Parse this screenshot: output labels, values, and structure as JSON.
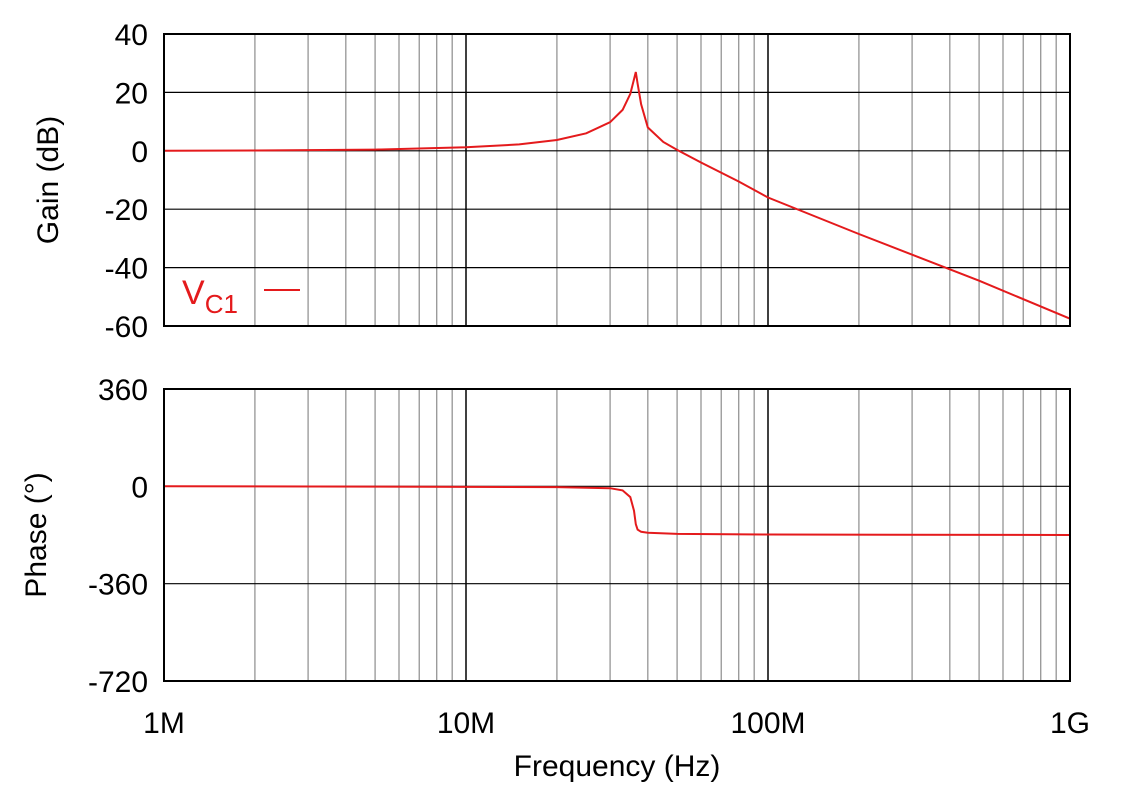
{
  "chart_data": [
    {
      "type": "line",
      "panel": "gain",
      "ylabel": "Gain (dB)",
      "ylim": [
        -60,
        40
      ],
      "yticks": [
        "40",
        "20",
        "0",
        "-20",
        "-40",
        "-60"
      ],
      "xscale": "log",
      "xlim": [
        1000000,
        1000000000
      ],
      "grid": true,
      "legend": {
        "text": "V",
        "subscript": "C1",
        "placement": "bottom-left"
      },
      "series": [
        {
          "name": "V_C1",
          "color": "#e41a1c",
          "x": [
            1000000,
            2000000,
            5000000,
            10000000,
            15000000,
            20000000,
            25000000,
            30000000,
            33000000,
            35000000,
            36000000,
            36500000,
            37000000,
            38000000,
            40000000,
            45000000,
            50000000,
            60000000,
            80000000,
            100000000,
            200000000,
            500000000,
            1000000000
          ],
          "y": [
            0,
            0.1,
            0.4,
            1.2,
            2.2,
            3.7,
            6.0,
            9.8,
            14.0,
            19.5,
            24.5,
            27.0,
            23.0,
            16.0,
            8.0,
            3.0,
            0.3,
            -4.0,
            -10.5,
            -16.0,
            -28.5,
            -44.5,
            -57.5
          ]
        }
      ]
    },
    {
      "type": "line",
      "panel": "phase",
      "ylabel": "Phase (°)",
      "ylim": [
        -720,
        360
      ],
      "yticks": [
        "360",
        "0",
        "-360",
        "-720"
      ],
      "xscale": "log",
      "xlim": [
        1000000,
        1000000000
      ],
      "xlabel": "Frequency (Hz)",
      "xticks": [
        "1M",
        "10M",
        "100M",
        "1G"
      ],
      "grid": true,
      "series": [
        {
          "name": "V_C1",
          "color": "#e41a1c",
          "x": [
            1000000,
            5000000,
            10000000,
            20000000,
            30000000,
            33000000,
            35000000,
            36000000,
            36500000,
            37000000,
            38000000,
            40000000,
            50000000,
            100000000,
            1000000000
          ],
          "y": [
            0,
            -1,
            -2,
            -3,
            -7,
            -15,
            -40,
            -90,
            -140,
            -160,
            -168,
            -172,
            -176,
            -178,
            -180
          ]
        }
      ]
    }
  ]
}
